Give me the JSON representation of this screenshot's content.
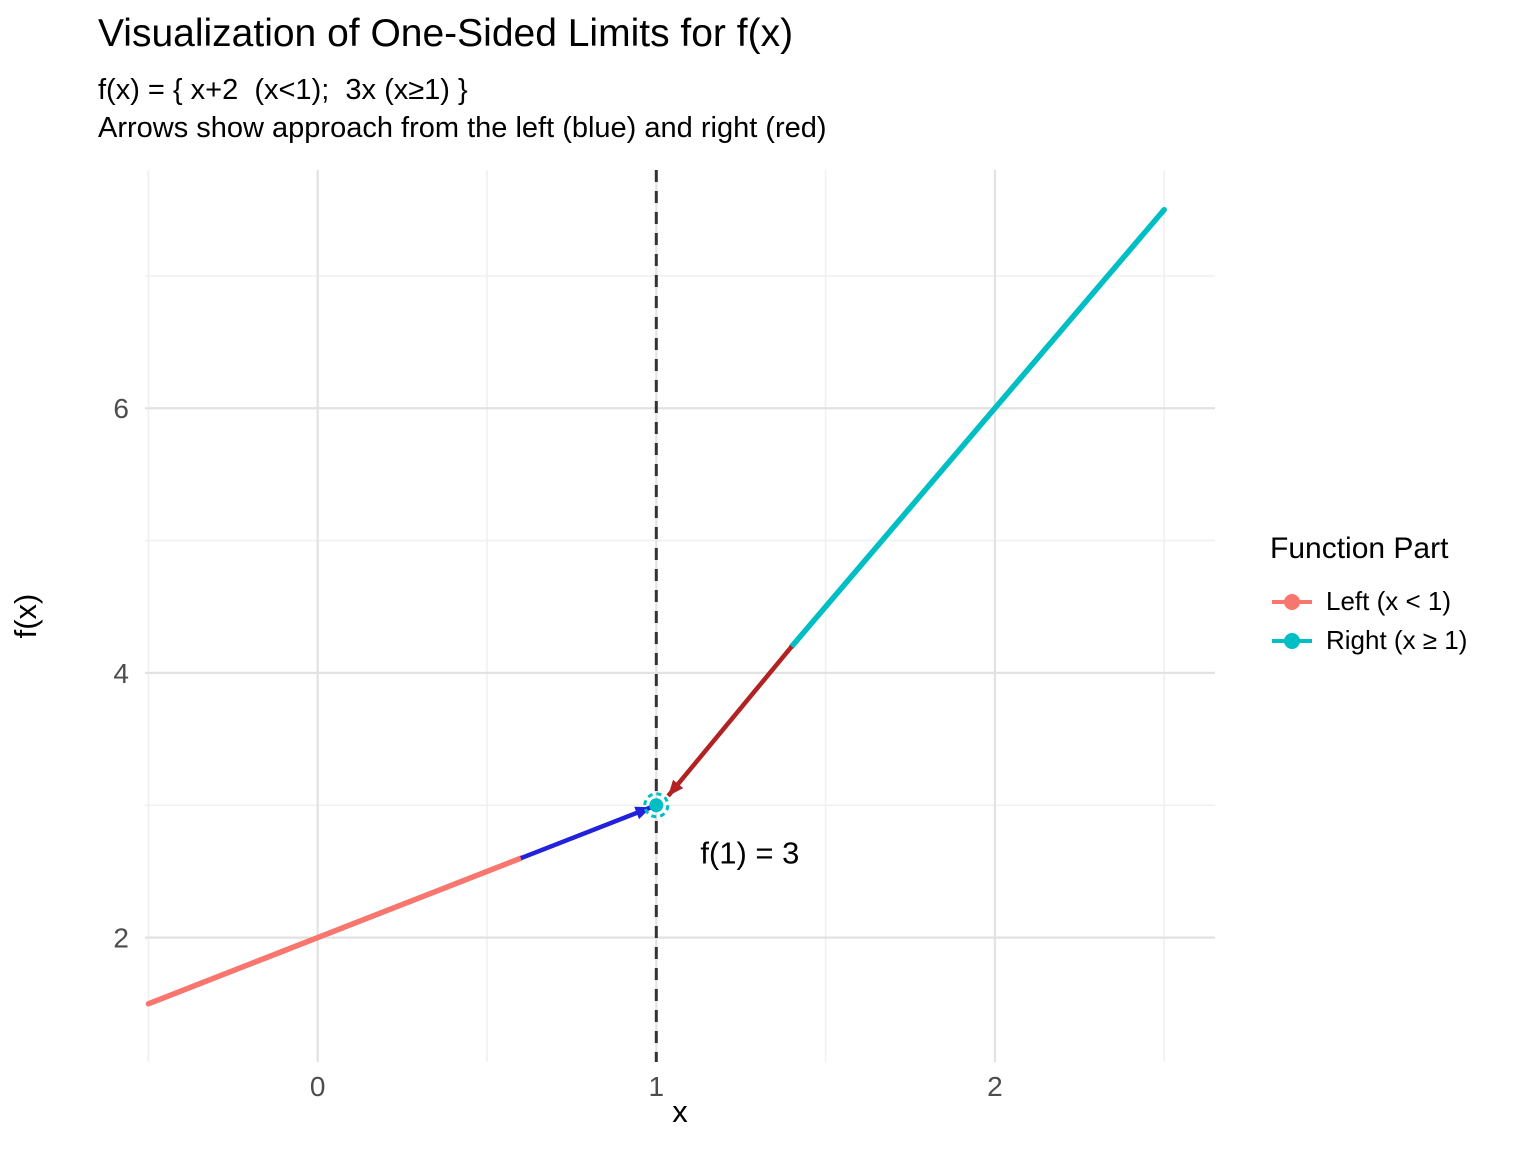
{
  "chart_data": {
    "type": "line",
    "title": "Visualization of One-Sided Limits for f(x)",
    "subtitle": "f(x) = { x+2  (x<1);  3x (x≥1) }",
    "note": "Arrows show approach from the left (blue) and right (red)",
    "xlabel": "x",
    "ylabel": "f(x)",
    "xlim": [
      -0.51,
      2.65
    ],
    "ylim": [
      1.06,
      7.8
    ],
    "x_ticks": [
      0,
      1,
      2
    ],
    "x_minor_ticks": [
      -0.5,
      0.5,
      1.5,
      2.5
    ],
    "y_ticks": [
      2,
      4,
      6
    ],
    "y_minor_ticks": [
      3,
      5,
      7
    ],
    "series": [
      {
        "name": "Left (x < 1)",
        "color": "#F8766D",
        "x": [
          -0.5,
          0.6
        ],
        "y": [
          1.5,
          2.6
        ]
      },
      {
        "name": "Right (x ≥ 1)",
        "color": "#00BFC4",
        "x": [
          1.4,
          2.5
        ],
        "y": [
          4.2,
          7.5
        ]
      }
    ],
    "arrows": [
      {
        "name": "left-approach-arrow",
        "color": "#2222DD",
        "from": [
          0.6,
          2.6
        ],
        "to": [
          0.985,
          2.985
        ]
      },
      {
        "name": "right-approach-arrow",
        "color": "#B22222",
        "from": [
          1.4,
          4.2
        ],
        "to": [
          1.035,
          3.07
        ]
      }
    ],
    "dashed_vline_x": 1,
    "limit_point": {
      "x": 1,
      "y": 3,
      "color": "#00BFC4"
    },
    "annotation": {
      "text": "f(1) = 3",
      "x": 1.13,
      "y": 2.56
    },
    "legend": {
      "title": "Function Part",
      "entries": [
        {
          "label": "Left (x < 1)",
          "color": "#F8766D"
        },
        {
          "label": "Right (x ≥ 1)",
          "color": "#00BFC4"
        }
      ]
    },
    "style": {
      "grid_major_color": "#E2E2E2",
      "grid_minor_color": "#F0F0F0",
      "tick_label_color": "#4D4D4D",
      "axis_title_color": "#000000",
      "vline_color": "#333333"
    }
  }
}
